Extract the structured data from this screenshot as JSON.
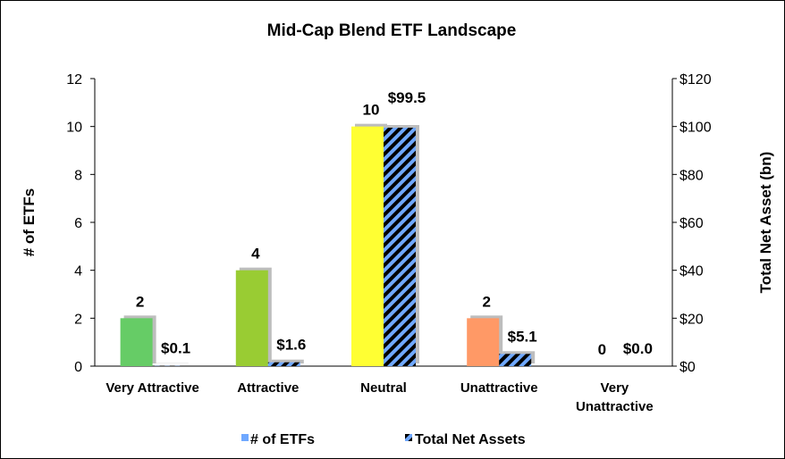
{
  "chart_data": {
    "type": "bar",
    "title": "Mid-Cap Blend ETF Landscape",
    "categories": [
      [
        "Very Attractive"
      ],
      [
        "Attractive"
      ],
      [
        "Neutral"
      ],
      [
        "Unattractive"
      ],
      [
        "Very",
        "Unattractive"
      ]
    ],
    "ylabel_left": "# of ETFs",
    "ylabel_right": "Total Net Asset (bn)",
    "ylim_left": [
      0,
      12
    ],
    "ylim_right": [
      0,
      120
    ],
    "yticks_left": [
      "0",
      "2",
      "4",
      "6",
      "8",
      "10",
      "12"
    ],
    "yticks_right": [
      "$0",
      "$20",
      "$40",
      "$60",
      "$80",
      "$100",
      "$120"
    ],
    "grid": false,
    "legend_position": "bottom",
    "series": [
      {
        "name": "# of ETFs",
        "axis": "left",
        "values": [
          2,
          4,
          10,
          2,
          0
        ],
        "labels": [
          "2",
          "4",
          "10",
          "2",
          "0"
        ],
        "colors": [
          "#66cc66",
          "#99cc33",
          "#ffff33",
          "#ff9966",
          "#ff3333"
        ],
        "legend_color": "#6fa8ff"
      },
      {
        "name": "Total Net Assets",
        "axis": "right",
        "values": [
          0.1,
          1.6,
          99.5,
          5.1,
          0.0
        ],
        "labels": [
          "$0.1",
          "$1.6",
          "$99.5",
          "$5.1",
          "$0.0"
        ],
        "pattern": "diagonal-stripes",
        "colors": [
          "#6fa8ff",
          "#000000"
        ]
      }
    ]
  }
}
